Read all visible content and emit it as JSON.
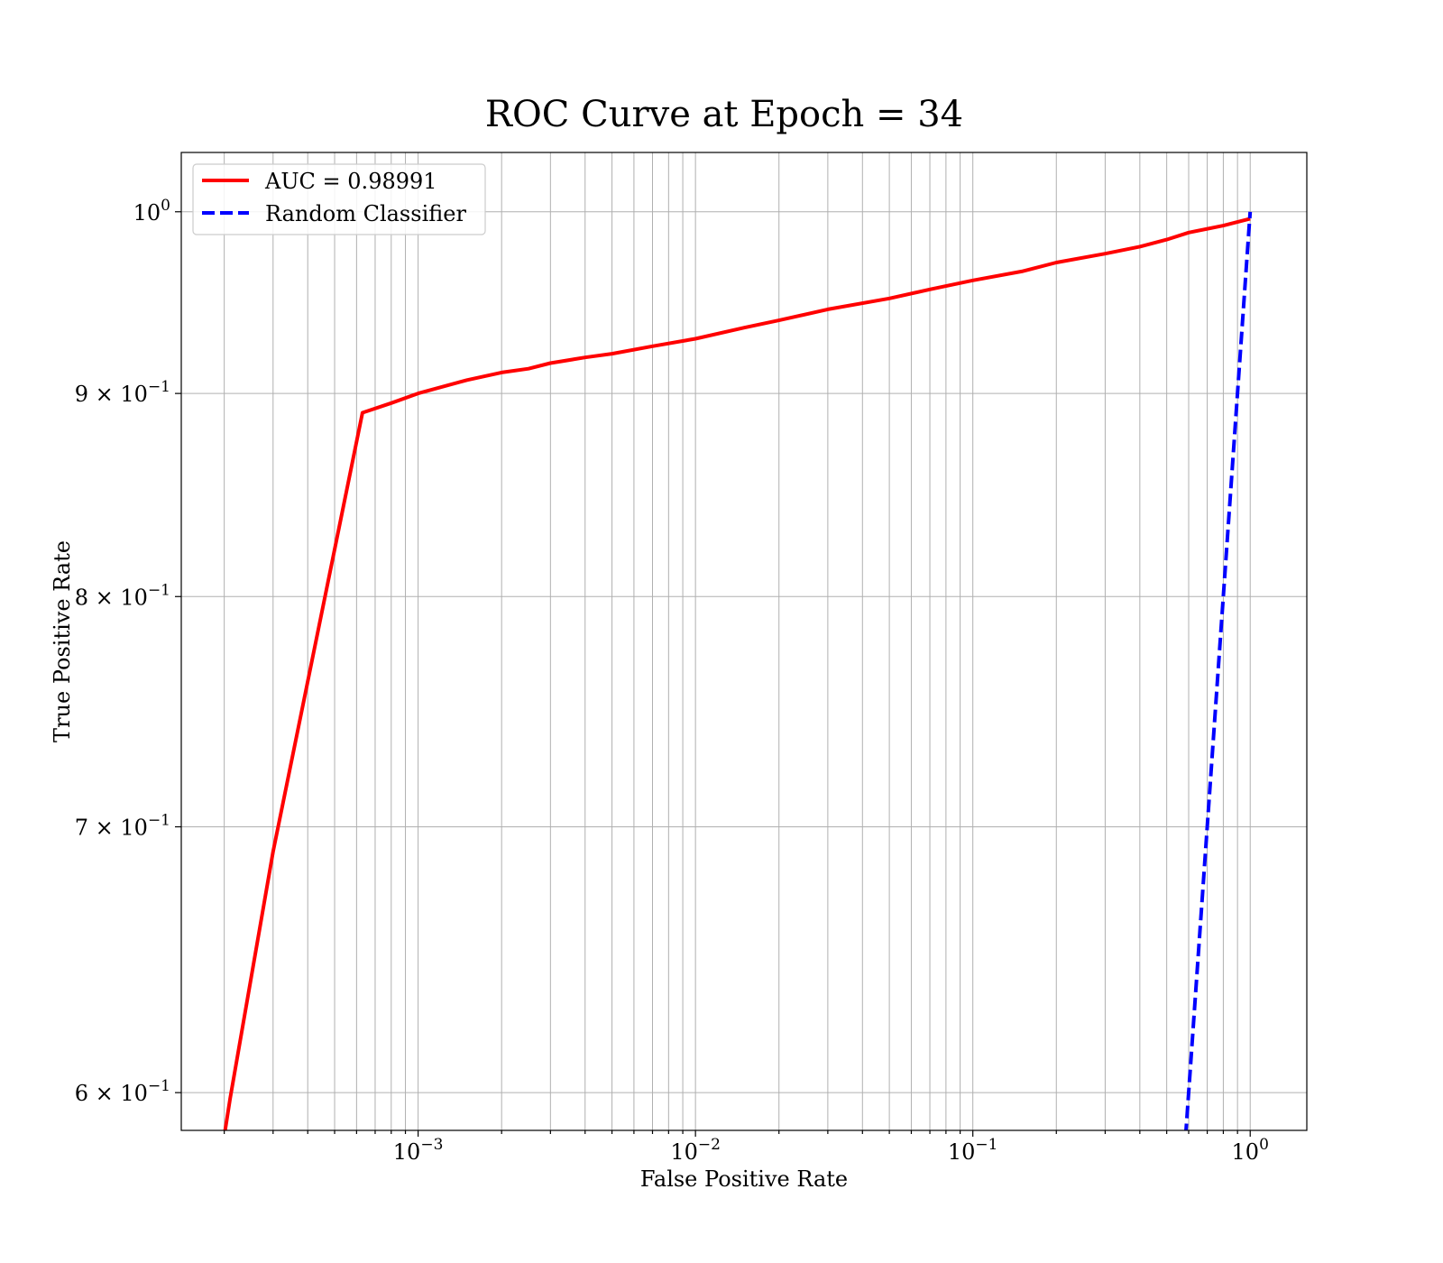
{
  "chart_data": {
    "type": "line",
    "title": "ROC Curve at Epoch = 34",
    "xlabel": "False Positive Rate",
    "ylabel": "True Positive Rate",
    "xscale": "log",
    "yscale": "log",
    "xlim": [
      0.00014,
      1.6
    ],
    "ylim": [
      0.587,
      1.035
    ],
    "grid": true,
    "legend_position": "top-left",
    "x_ticks": [
      {
        "value": 0.001,
        "base": "10",
        "exp": "−3"
      },
      {
        "value": 0.01,
        "base": "10",
        "exp": "−2"
      },
      {
        "value": 0.1,
        "base": "10",
        "exp": "−1"
      },
      {
        "value": 1,
        "base": "10",
        "exp": "0"
      }
    ],
    "y_ticks": [
      {
        "value": 1.0,
        "base": "10",
        "exp": "0"
      },
      {
        "value": 0.9,
        "base": "9 × 10",
        "exp": "−1"
      },
      {
        "value": 0.8,
        "base": "8 × 10",
        "exp": "−1"
      },
      {
        "value": 0.7,
        "base": "7 × 10",
        "exp": "−1"
      },
      {
        "value": 0.6,
        "base": "6 × 10",
        "exp": "−1"
      }
    ],
    "series": [
      {
        "name": "AUC = 0.98991",
        "color": "#ff0000",
        "style": "solid",
        "x": [
          0.0002,
          0.00021,
          0.0003,
          0.00063,
          0.0008,
          0.001,
          0.0015,
          0.002,
          0.0025,
          0.003,
          0.004,
          0.005,
          0.007,
          0.01,
          0.015,
          0.02,
          0.03,
          0.05,
          0.07,
          0.1,
          0.15,
          0.2,
          0.3,
          0.4,
          0.5,
          0.6,
          0.8,
          1.0
        ],
        "y": [
          0.585,
          0.598,
          0.69,
          0.89,
          0.895,
          0.9,
          0.907,
          0.911,
          0.913,
          0.916,
          0.919,
          0.921,
          0.925,
          0.929,
          0.935,
          0.939,
          0.945,
          0.951,
          0.956,
          0.961,
          0.966,
          0.971,
          0.976,
          0.98,
          0.984,
          0.988,
          0.992,
          0.996
        ]
      },
      {
        "name": "Random Classifier",
        "color": "#0000ff",
        "style": "dashed",
        "x": [
          0.585,
          1.0
        ],
        "y": [
          0.585,
          1.0
        ]
      }
    ]
  }
}
